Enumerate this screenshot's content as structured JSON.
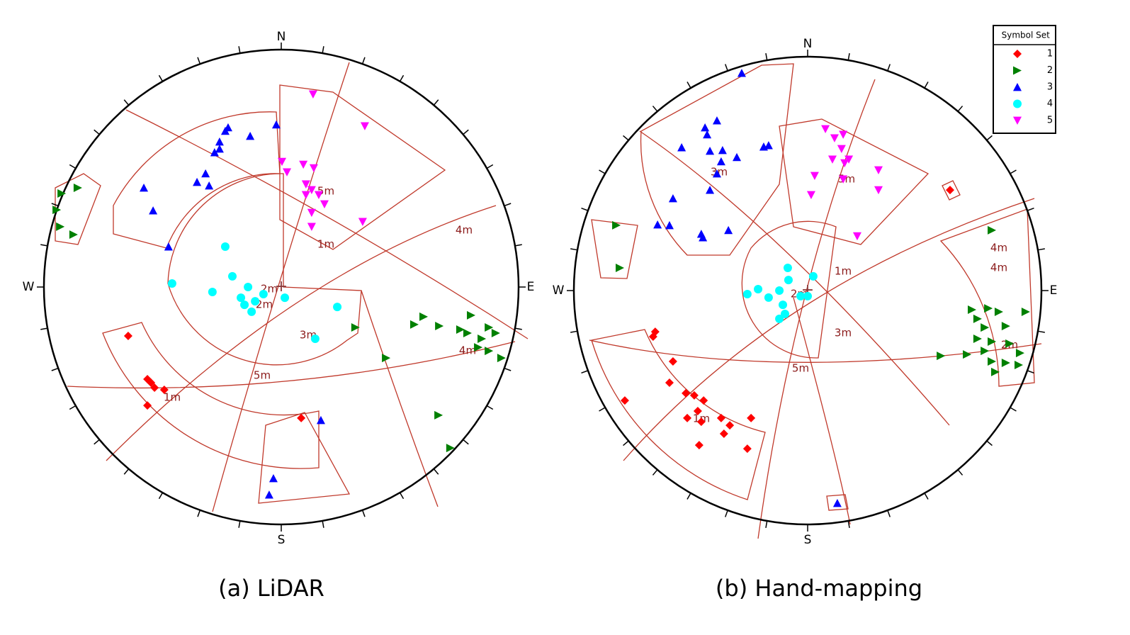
{
  "chart_data": [
    {
      "type": "scatter",
      "caption": "(a) LiDAR",
      "xlim": [
        -1,
        1
      ],
      "ylim": [
        -1,
        1
      ],
      "directions": [
        "N",
        "E",
        "S",
        "W"
      ],
      "window_labels": [
        "5m",
        "1m",
        "2m",
        "4m",
        "4m",
        "3m",
        "5m",
        "1m",
        "2m"
      ],
      "series": [
        {
          "name": "1",
          "color": "#ff0000",
          "marker": "diamond",
          "x": [
            -0.645,
            -0.564,
            -0.549,
            -0.534,
            -0.493,
            -0.564,
            0.084
          ],
          "values": [
            -0.206,
            -0.388,
            -0.403,
            -0.424,
            -0.433,
            -0.499,
            -0.552
          ]
        },
        {
          "name": "2",
          "color": "#008000",
          "marker": "triangle-right",
          "x": [
            -0.857,
            -0.925,
            -0.946,
            -0.931,
            -0.875,
            0.6,
            0.561,
            0.666,
            0.755,
            0.785,
            0.875,
            0.904,
            0.83,
            0.928,
            0.875,
            0.442,
            0.313,
            0.663,
            0.713,
            0.8,
            0.845
          ],
          "values": [
            0.418,
            0.394,
            0.325,
            0.254,
            0.221,
            -0.125,
            -0.158,
            -0.164,
            -0.179,
            -0.194,
            -0.17,
            -0.194,
            -0.254,
            -0.299,
            -0.269,
            -0.299,
            -0.17,
            -0.54,
            -0.678,
            -0.119,
            -0.218
          ]
        },
        {
          "name": "3",
          "color": "#0000ff",
          "marker": "triangle-up",
          "x": [
            -0.579,
            -0.54,
            -0.475,
            -0.355,
            -0.319,
            -0.304,
            -0.281,
            -0.26,
            -0.236,
            -0.224,
            -0.26,
            -0.131,
            -0.021,
            -0.033,
            -0.051,
            0.167
          ],
          "values": [
            0.418,
            0.322,
            0.17,
            0.442,
            0.478,
            0.427,
            0.567,
            0.612,
            0.657,
            0.672,
            0.582,
            0.636,
            0.684,
            -0.806,
            -0.875,
            -0.561
          ]
        },
        {
          "name": "4",
          "color": "#00ffff",
          "marker": "circle",
          "x": [
            -0.236,
            -0.46,
            -0.29,
            -0.206,
            -0.17,
            -0.14,
            -0.125,
            -0.11,
            -0.075,
            0.015,
            0.143,
            0.236,
            -0.155
          ],
          "values": [
            0.17,
            0.015,
            -0.021,
            0.045,
            -0.045,
            0.0,
            -0.104,
            -0.06,
            -0.03,
            -0.045,
            -0.218,
            -0.084,
            -0.075
          ]
        },
        {
          "name": "5",
          "color": "#ff00ff",
          "marker": "triangle-down",
          "x": [
            0.134,
            0.352,
            0.003,
            0.024,
            0.093,
            0.137,
            0.104,
            0.128,
            0.158,
            0.182,
            0.128,
            0.343,
            0.128,
            0.104
          ],
          "values": [
            0.812,
            0.678,
            0.528,
            0.484,
            0.516,
            0.501,
            0.433,
            0.409,
            0.388,
            0.349,
            0.313,
            0.275,
            0.254,
            0.388
          ]
        }
      ]
    },
    {
      "type": "scatter",
      "caption": "(b) Hand-mapping",
      "xlim": [
        -1,
        1
      ],
      "ylim": [
        -1,
        1
      ],
      "directions": [
        "N",
        "E",
        "S",
        "W"
      ],
      "window_labels": [
        "3m",
        "5m",
        "1m",
        "4m",
        "2m",
        "4m",
        "3m",
        "5m",
        "1m",
        "2m"
      ],
      "series": [
        {
          "name": "1",
          "color": "#ff0000",
          "marker": "diamond",
          "x": [
            -0.652,
            -0.661,
            -0.576,
            -0.591,
            -0.521,
            -0.485,
            -0.445,
            -0.47,
            -0.515,
            -0.455,
            -0.37,
            -0.333,
            -0.358,
            -0.242,
            -0.258,
            -0.464,
            -0.782,
            0.609
          ],
          "values": [
            -0.176,
            -0.197,
            -0.303,
            -0.394,
            -0.439,
            -0.448,
            -0.47,
            -0.515,
            -0.545,
            -0.561,
            -0.545,
            -0.576,
            -0.612,
            -0.545,
            -0.676,
            -0.661,
            -0.47,
            0.43
          ]
        },
        {
          "name": "2",
          "color": "#008000",
          "marker": "triangle-right",
          "x": [
            -0.818,
            -0.803,
            0.788,
            0.773,
            0.818,
            0.727,
            0.758,
            0.848,
            0.727,
            0.788,
            0.864,
            0.909,
            0.682,
            0.57,
            0.788,
            0.848,
            0.903,
            0.803,
            0.933,
            0.703,
            0.758
          ],
          "values": [
            0.279,
            0.097,
            0.258,
            -0.076,
            -0.091,
            -0.121,
            -0.158,
            -0.152,
            -0.206,
            -0.218,
            -0.227,
            -0.267,
            -0.273,
            -0.279,
            -0.303,
            -0.309,
            -0.318,
            -0.348,
            -0.091,
            -0.082,
            -0.258
          ]
        },
        {
          "name": "3",
          "color": "#0000ff",
          "marker": "triangle-up",
          "x": [
            -0.282,
            -0.439,
            -0.388,
            -0.43,
            -0.539,
            -0.418,
            -0.364,
            -0.303,
            -0.37,
            -0.188,
            -0.167,
            -0.388,
            -0.418,
            -0.576,
            -0.642,
            -0.591,
            -0.455,
            -0.339,
            -0.448,
            0.127
          ],
          "values": [
            0.93,
            0.697,
            0.727,
            0.667,
            0.612,
            0.597,
            0.6,
            0.57,
            0.552,
            0.615,
            0.621,
            0.5,
            0.43,
            0.394,
            0.282,
            0.279,
            0.242,
            0.258,
            0.227,
            -0.909
          ]
        },
        {
          "name": "4",
          "color": "#00ffff",
          "marker": "circle",
          "x": [
            -0.085,
            0.024,
            -0.121,
            -0.258,
            -0.212,
            -0.167,
            -0.106,
            -0.121,
            -0.097,
            -0.03,
            0.0,
            -0.082
          ],
          "values": [
            0.097,
            0.061,
            0.0,
            -0.015,
            0.006,
            -0.03,
            -0.061,
            -0.121,
            -0.1,
            -0.024,
            -0.024,
            0.045
          ]
        },
        {
          "name": "5",
          "color": "#ff00ff",
          "marker": "triangle-down",
          "x": [
            0.076,
            0.115,
            0.152,
            0.145,
            0.106,
            0.176,
            0.03,
            0.303,
            0.303,
            0.152,
            0.015,
            0.212,
            0.158
          ],
          "values": [
            0.691,
            0.652,
            0.667,
            0.606,
            0.561,
            0.561,
            0.491,
            0.515,
            0.43,
            0.476,
            0.409,
            0.233,
            0.545
          ]
        }
      ]
    }
  ],
  "legend": {
    "headers": [
      "Symbol",
      "Set"
    ]
  }
}
